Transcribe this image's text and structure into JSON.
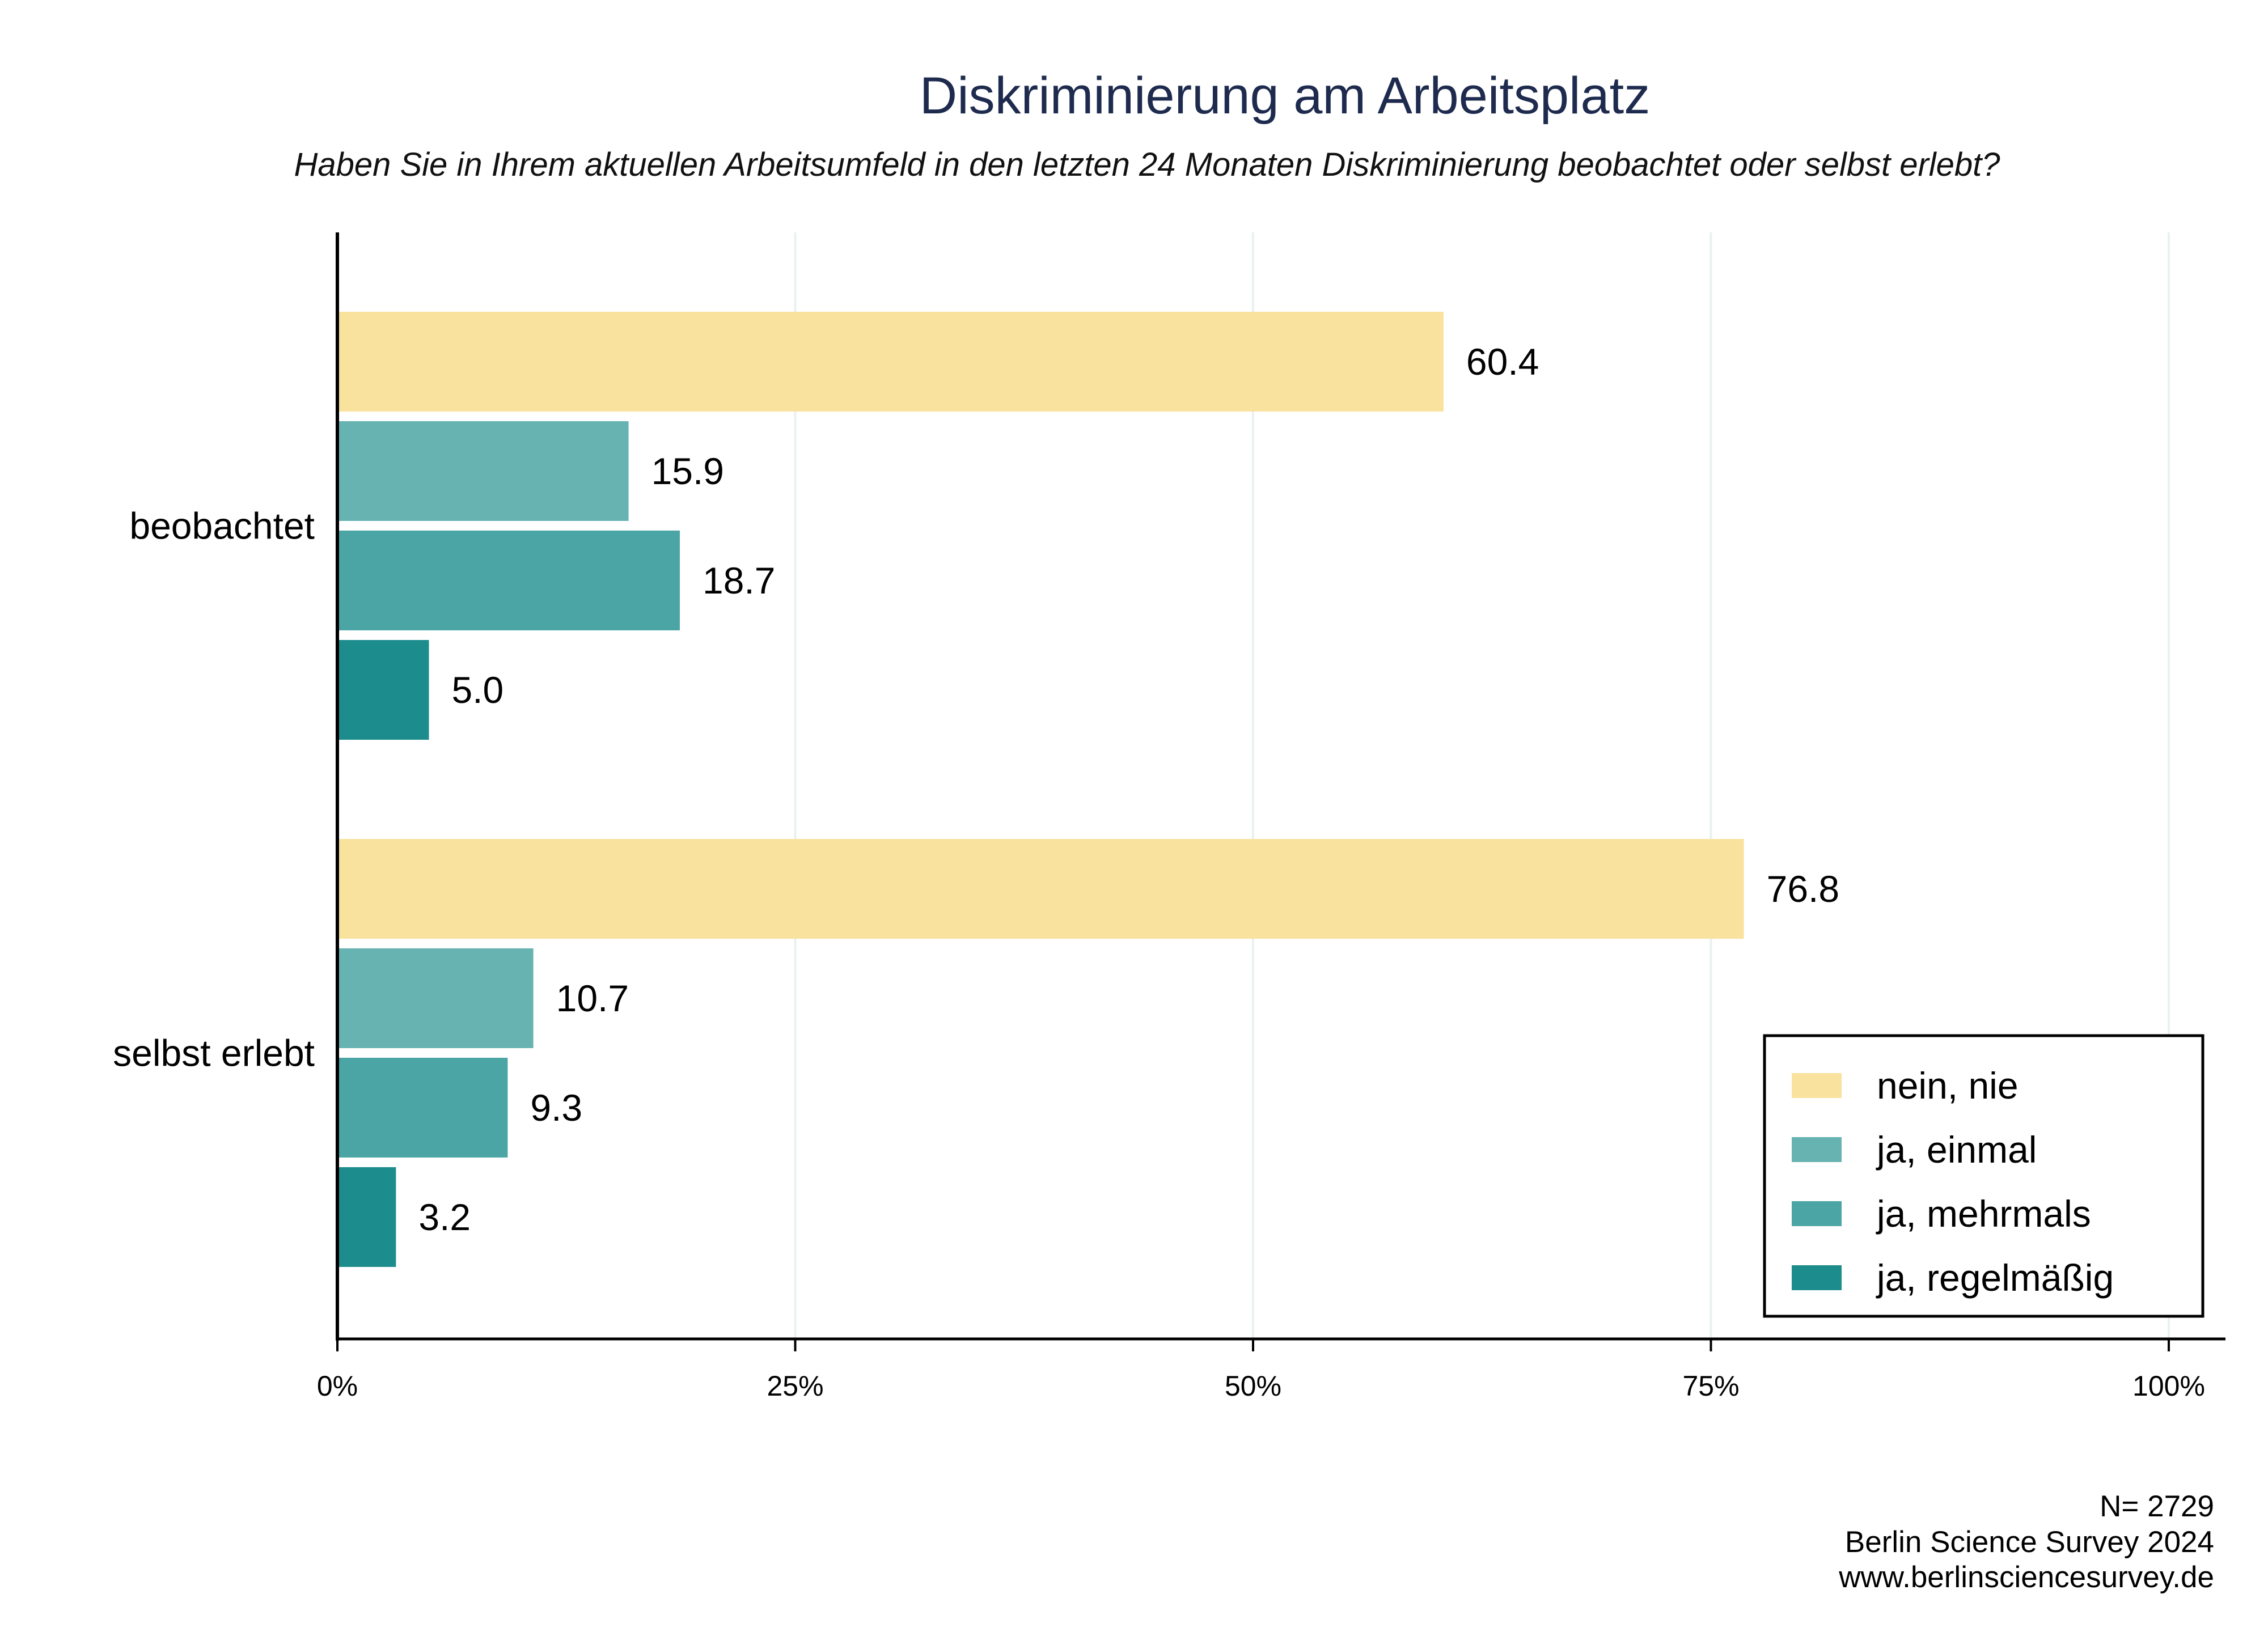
{
  "chart_data": {
    "type": "bar",
    "orientation": "horizontal",
    "title": "Diskriminierung am Arbeitsplatz",
    "subtitle": "Haben Sie in Ihrem aktuellen Arbeitsumfeld in den letzten 24 Monaten Diskriminierung beobachtet oder selbst erlebt?",
    "categories": [
      "beobachtet",
      "selbst erlebt"
    ],
    "series": [
      {
        "name": "nein, nie",
        "values": [
          60.4,
          76.8
        ],
        "labels": [
          "60.4",
          "76.8"
        ],
        "color": "#f9e29d"
      },
      {
        "name": "ja, einmal",
        "values": [
          15.9,
          10.7
        ],
        "labels": [
          "15.9",
          "10.7"
        ],
        "color": "#67b3b2"
      },
      {
        "name": "ja, mehrmals",
        "values": [
          18.7,
          9.3
        ],
        "labels": [
          "18.7",
          "9.3"
        ],
        "color": "#4ba5a5"
      },
      {
        "name": "ja, regelmäßig",
        "values": [
          5.0,
          3.2
        ],
        "labels": [
          "5.0",
          "3.2"
        ],
        "color": "#1c8c8c"
      }
    ],
    "xlim": [
      0,
      100
    ],
    "xticks": [
      0,
      25,
      50,
      75,
      100
    ],
    "xtick_labels": [
      "0%",
      "25%",
      "50%",
      "75%",
      "100%"
    ],
    "grid": true,
    "legend_position": "bottom-right"
  },
  "footer": {
    "n": "N= 2729",
    "source": "Berlin Science Survey 2024",
    "url": "www.berlinsciencesurvey.de"
  },
  "colors": {
    "title": "#1e2b4e",
    "grid": "#e8f2f1",
    "axis": "#000000"
  }
}
